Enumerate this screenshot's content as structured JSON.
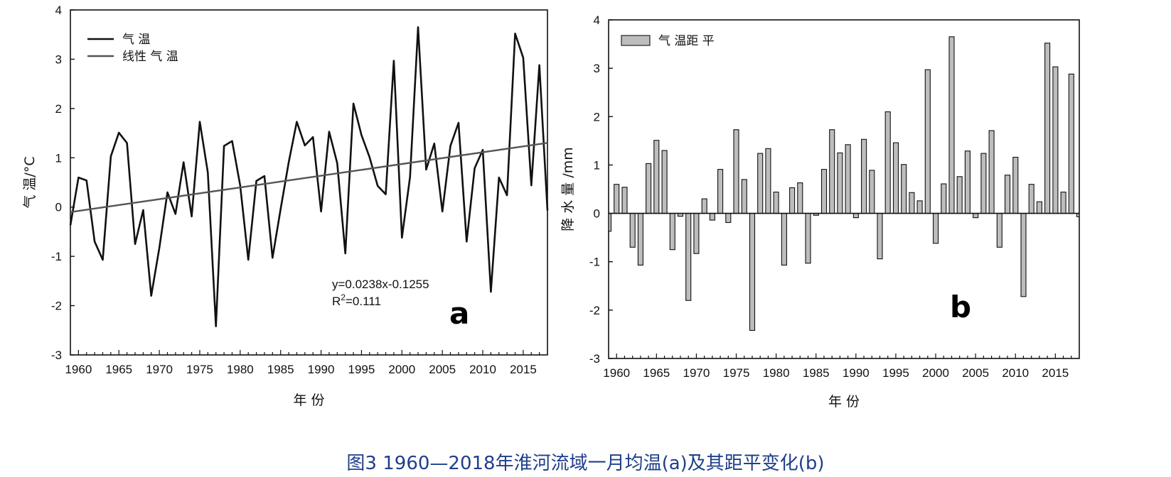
{
  "caption": "图3 1960—2018年淮河流域一月均温(a)及其距平变化(b)",
  "chart_data": [
    {
      "type": "line",
      "panel_label": "a",
      "xlabel": "年 份",
      "ylabel": "气 温/°C",
      "ylim": [
        -3,
        4
      ],
      "xlim": [
        1959,
        2018
      ],
      "yticks": [
        "-3",
        "-2",
        "-1",
        "0",
        "1",
        "2",
        "3",
        "4"
      ],
      "xticks": [
        "1960",
        "1965",
        "1970",
        "1975",
        "1980",
        "1985",
        "1990",
        "1995",
        "2000",
        "2005",
        "2010",
        "2015"
      ],
      "x": [
        1959,
        1960,
        1961,
        1962,
        1963,
        1964,
        1965,
        1966,
        1967,
        1968,
        1969,
        1970,
        1971,
        1972,
        1973,
        1974,
        1975,
        1976,
        1977,
        1978,
        1979,
        1980,
        1981,
        1982,
        1983,
        1984,
        1985,
        1986,
        1987,
        1988,
        1989,
        1990,
        1991,
        1992,
        1993,
        1994,
        1995,
        1996,
        1997,
        1998,
        1999,
        2000,
        2001,
        2002,
        2003,
        2004,
        2005,
        2006,
        2007,
        2008,
        2009,
        2010,
        2011,
        2012,
        2013,
        2014,
        2015,
        2016,
        2017,
        2018
      ],
      "series": [
        {
          "name": "气 温",
          "values": [
            -0.37,
            0.6,
            0.54,
            -0.7,
            -1.07,
            1.03,
            1.51,
            1.3,
            -0.75,
            -0.06,
            -1.8,
            -0.83,
            0.3,
            -0.14,
            0.91,
            -0.19,
            1.73,
            0.7,
            -2.42,
            1.24,
            1.34,
            0.44,
            -1.07,
            0.53,
            0.63,
            -1.03,
            -0.04,
            0.91,
            1.73,
            1.25,
            1.42,
            -0.09,
            1.53,
            0.89,
            -0.94,
            2.1,
            1.46,
            1.01,
            0.43,
            0.26,
            2.97,
            -0.62,
            0.61,
            3.65,
            0.76,
            1.29,
            -0.09,
            1.24,
            1.71,
            -0.7,
            0.79,
            1.16,
            -1.72,
            0.6,
            0.24,
            3.52,
            3.03,
            0.44,
            2.88,
            -0.07
          ]
        },
        {
          "name": "线性 气 温",
          "trend": {
            "slope": 0.0238,
            "intercept": -0.1255
          }
        }
      ],
      "annotations": [
        "y=0.0238x-0.1255",
        "R",
        "2",
        "=0.111"
      ],
      "legend_position": "top-left",
      "line_color": "#111111",
      "trend_color": "#555555"
    },
    {
      "type": "bar",
      "panel_label": "b",
      "xlabel": "年 份",
      "ylabel": "降 水 量 /mm",
      "ylim": [
        -3,
        4
      ],
      "xlim": [
        1959,
        2018
      ],
      "yticks": [
        "-3",
        "-2",
        "-1",
        "0",
        "1",
        "2",
        "3",
        "4"
      ],
      "xticks": [
        "1960",
        "1965",
        "1970",
        "1975",
        "1980",
        "1985",
        "1990",
        "1995",
        "2000",
        "2005",
        "2010",
        "2015"
      ],
      "x": [
        1959,
        1960,
        1961,
        1962,
        1963,
        1964,
        1965,
        1966,
        1967,
        1968,
        1969,
        1970,
        1971,
        1972,
        1973,
        1974,
        1975,
        1976,
        1977,
        1978,
        1979,
        1980,
        1981,
        1982,
        1983,
        1984,
        1985,
        1986,
        1987,
        1988,
        1989,
        1990,
        1991,
        1992,
        1993,
        1994,
        1995,
        1996,
        1997,
        1998,
        1999,
        2000,
        2001,
        2002,
        2003,
        2004,
        2005,
        2006,
        2007,
        2008,
        2009,
        2010,
        2011,
        2012,
        2013,
        2014,
        2015,
        2016,
        2017,
        2018
      ],
      "series": [
        {
          "name": "气 温距 平",
          "values": [
            -0.37,
            0.6,
            0.54,
            -0.7,
            -1.07,
            1.03,
            1.51,
            1.3,
            -0.75,
            -0.06,
            -1.8,
            -0.83,
            0.3,
            -0.14,
            0.91,
            -0.19,
            1.73,
            0.7,
            -2.42,
            1.24,
            1.34,
            0.44,
            -1.07,
            0.53,
            0.63,
            -1.03,
            -0.04,
            0.91,
            1.73,
            1.25,
            1.42,
            -0.09,
            1.53,
            0.89,
            -0.94,
            2.1,
            1.46,
            1.01,
            0.43,
            0.26,
            2.97,
            -0.62,
            0.61,
            3.65,
            0.76,
            1.29,
            -0.09,
            1.24,
            1.71,
            -0.7,
            0.79,
            1.16,
            -1.72,
            0.6,
            0.24,
            3.52,
            3.03,
            0.44,
            2.88,
            -0.07
          ]
        }
      ],
      "legend_position": "top-left",
      "bar_color": "#bdbdbd"
    }
  ]
}
